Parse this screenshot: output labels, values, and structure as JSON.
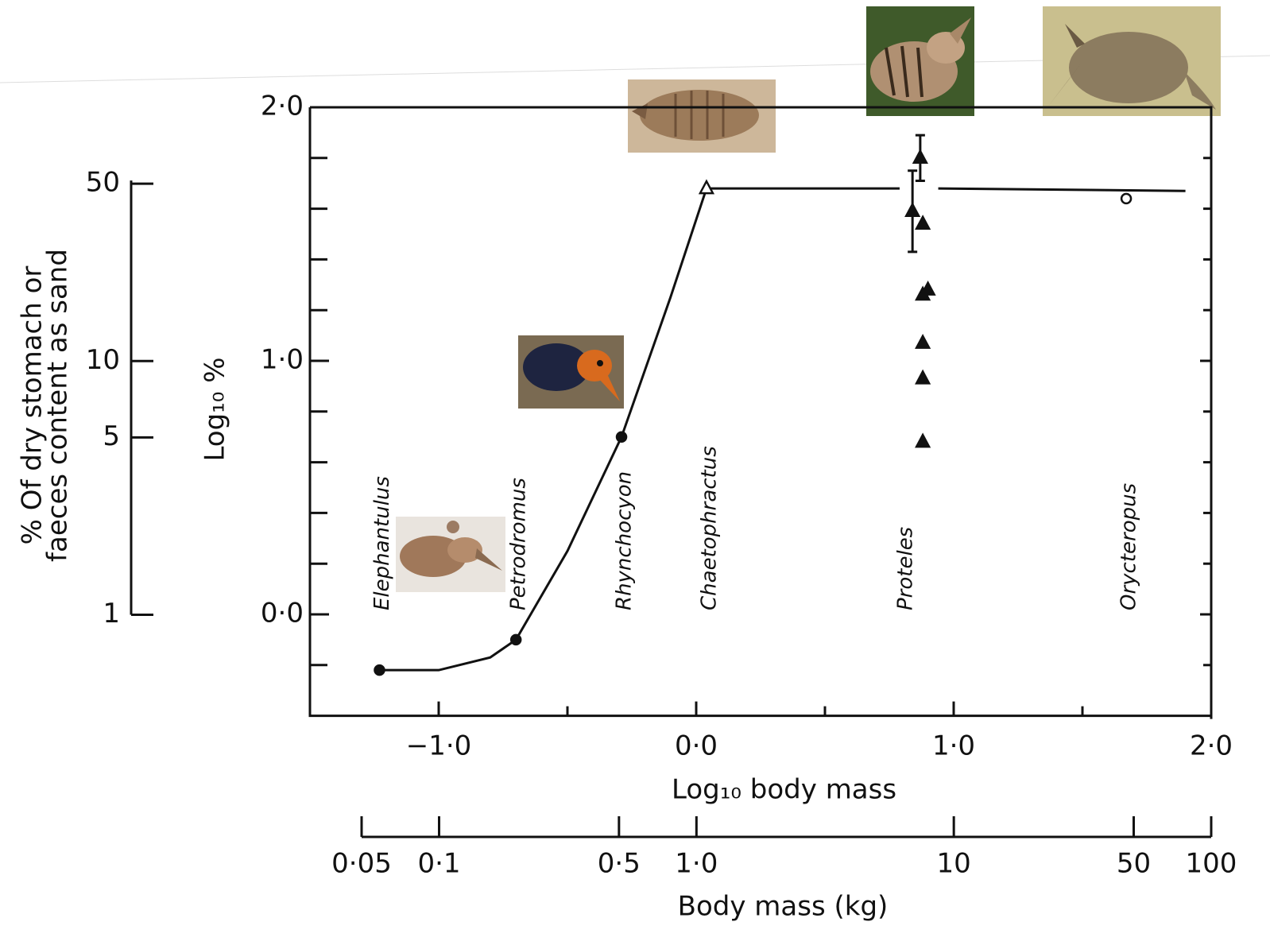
{
  "chart_data": {
    "type": "scatter",
    "xlabel": "Log₁₀ body mass",
    "ylabel": "Log₁₀ %",
    "xlim": [
      -1.5,
      2.0
    ],
    "ylim": [
      -0.4,
      2.0
    ],
    "xticks": [
      {
        "value": -1.0,
        "label": "−1·0"
      },
      {
        "value": 0.0,
        "label": "0·0"
      },
      {
        "value": 1.0,
        "label": "1·0"
      },
      {
        "value": 2.0,
        "label": "2·0"
      }
    ],
    "xminorticks": [
      -0.5,
      0.5,
      1.5
    ],
    "yticks": [
      {
        "value": 0.0,
        "label": "0·0"
      },
      {
        "value": 1.0,
        "label": "1·0"
      },
      {
        "value": 2.0,
        "label": "2·0"
      }
    ],
    "yminorticks": [
      -0.2,
      0.2,
      0.4,
      0.6,
      0.8,
      1.2,
      1.4,
      1.6,
      1.8
    ],
    "y2label": [
      "% Of dry stomach or",
      "faeces content as sand"
    ],
    "y2lim": [
      0.4,
      100
    ],
    "y2log": true,
    "y2ticks": [
      1,
      5,
      10,
      50
    ],
    "x2label": "Body mass (kg)",
    "x2lim": [
      0.05,
      100
    ],
    "x2log": true,
    "x2ticks": [
      {
        "value": 0.05,
        "label": "0·05"
      },
      {
        "value": 0.1,
        "label": "0·1"
      },
      {
        "value": 0.5,
        "label": "0·5"
      },
      {
        "value": 1.0,
        "label": "1·0"
      },
      10,
      50,
      100
    ],
    "color": "#111111",
    "curve": {
      "x": [
        -1.23,
        -1.0,
        -0.8,
        -0.7,
        -0.5,
        -0.29,
        -0.1,
        0.04,
        0.79,
        null,
        0.94,
        1.9
      ],
      "values": [
        -0.22,
        -0.22,
        -0.17,
        -0.1,
        0.25,
        0.7,
        1.25,
        1.68,
        1.68,
        null,
        1.68,
        1.67
      ]
    },
    "series": [
      {
        "name": "Elephantulus",
        "marker": "circle",
        "filled": true,
        "x": [
          -1.23
        ],
        "values": [
          -0.22
        ]
      },
      {
        "name": "Petrodromus",
        "marker": "circle",
        "filled": true,
        "x": [
          -0.7
        ],
        "values": [
          -0.1
        ]
      },
      {
        "name": "Rhynchocyon",
        "marker": "circle",
        "filled": true,
        "x": [
          -0.29
        ],
        "values": [
          0.7
        ]
      },
      {
        "name": "Chaetophractus",
        "marker": "triangle",
        "filled": false,
        "x": [
          0.04
        ],
        "values": [
          1.68
        ]
      },
      {
        "name": "Proteles",
        "marker": "triangle",
        "filled": true,
        "x": [
          0.84,
          0.87,
          0.88,
          0.9,
          0.88,
          0.88,
          0.88,
          0.88
        ],
        "values": [
          1.59,
          1.8,
          1.54,
          1.28,
          1.26,
          1.07,
          0.93,
          0.68
        ],
        "errors": [
          0.16,
          0.09,
          null,
          null,
          null,
          null,
          null,
          null
        ]
      },
      {
        "name": "Orycteropus",
        "marker": "circle",
        "filled": false,
        "x": [
          1.67
        ],
        "values": [
          1.64
        ]
      }
    ]
  }
}
